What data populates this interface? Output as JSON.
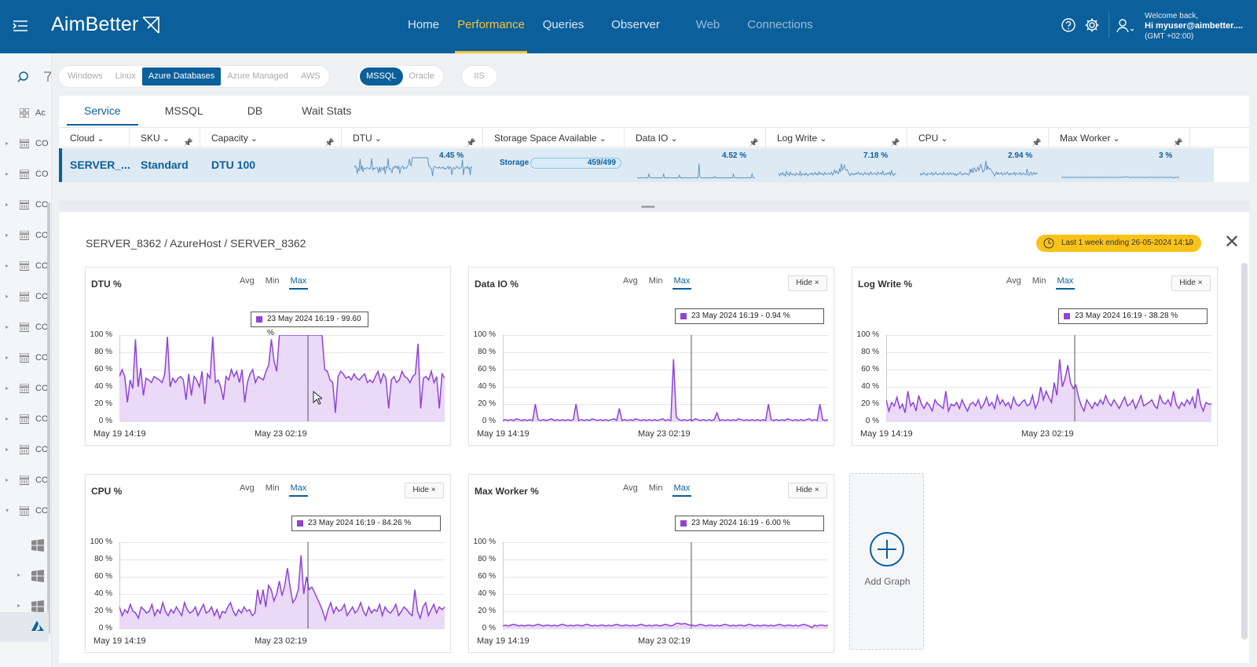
{
  "header": {
    "brand": "AimBetter",
    "nav": [
      {
        "label": "Home",
        "state": "normal"
      },
      {
        "label": "Performance",
        "state": "active"
      },
      {
        "label": "Queries",
        "state": "normal"
      },
      {
        "label": "Observer",
        "state": "normal"
      },
      {
        "label": "Web",
        "state": "dim"
      },
      {
        "label": "Connections",
        "state": "dim"
      }
    ],
    "welcome_line": "Welcome back,",
    "user_line": "Hi myuser@aimbetter....",
    "tz_line": "(GMT +02:00)"
  },
  "sidebar": {
    "top_label": "Ac",
    "rows": [
      "CO",
      "CO",
      "CO",
      "CO",
      "CO",
      "CO",
      "CO",
      "CO",
      "CO",
      "CO",
      "CO",
      "CO",
      "CO"
    ]
  },
  "filters": {
    "os": [
      "Windows",
      "Linux",
      "Azure Databases",
      "Azure Managed",
      "AWS"
    ],
    "os_selected": "Azure Databases",
    "engine": [
      "MSSQL",
      "Oracle"
    ],
    "engine_selected": "MSSQL",
    "web": "IIS"
  },
  "tabs": [
    "Service",
    "MSSQL",
    "DB",
    "Wait Stats"
  ],
  "active_tab": "Service",
  "columns": [
    "Cloud",
    "SKU",
    "Capacity",
    "DTU",
    "Storage Space Available",
    "Data IO",
    "Log Write",
    "CPU",
    "Max Worker"
  ],
  "row": {
    "cloud": "SERVER_...",
    "sku": "Standard",
    "capacity": "DTU 100",
    "dtu_pct": "4.45 %",
    "storage_label": "Storage",
    "storage_value": "459/499",
    "dataio_pct": "4.52 %",
    "logwrite_pct": "7.18 %",
    "cpu_pct": "2.94 %",
    "maxworker_pct": "3 %"
  },
  "detail": {
    "breadcrumb": "SERVER_8362 / AzureHost / SERVER_8362",
    "date_range": "Last 1 week ending  26-05-2024 14:19",
    "add_graph": "Add Graph"
  },
  "graph_ui": {
    "modes": [
      "Avg",
      "Min",
      "Max"
    ],
    "active_mode": "Max",
    "hide_label": "Hide ×",
    "y_ticks": [
      "100 %",
      "80 %",
      "60 %",
      "40 %",
      "20 %",
      "0 %"
    ],
    "x_ticks": [
      "May 19 14:19",
      "May 23 02:19"
    ],
    "line_color": "#8e44d8",
    "fill_color": "#ead9f7"
  },
  "chart_data": [
    {
      "type": "area",
      "title": "DTU %",
      "tooltip": "23 May 2024 16:19 - 99.60 %",
      "ylim": [
        0,
        100
      ],
      "values": [
        52,
        60,
        52,
        22,
        48,
        38,
        95,
        40,
        62,
        30,
        50,
        48,
        45,
        52,
        50,
        48,
        45,
        55,
        98,
        40,
        50,
        45,
        50,
        52,
        48,
        25,
        55,
        30,
        52,
        48,
        40,
        58,
        20,
        55,
        50,
        98,
        45,
        48,
        40,
        25,
        52,
        48,
        60,
        52,
        58,
        45,
        60,
        22,
        45,
        55,
        60,
        45,
        52,
        50,
        48,
        58,
        65,
        95,
        70,
        58,
        100,
        100,
        100,
        100,
        100,
        100,
        100,
        100,
        100,
        100,
        100,
        100,
        100,
        100,
        100,
        100,
        100,
        60,
        58,
        48,
        45,
        10,
        52,
        58,
        55,
        50,
        52,
        48,
        55,
        50,
        48,
        52,
        55,
        45,
        48,
        45,
        52,
        58,
        45,
        55,
        50,
        15,
        48,
        52,
        45,
        48,
        58,
        52,
        50,
        45,
        52,
        55,
        90,
        15,
        50,
        52,
        48,
        58,
        45,
        52,
        15,
        55,
        50
      ]
    },
    {
      "type": "area",
      "title": "Data IO %",
      "tooltip": "23 May 2024 16:19 - 0.94 %",
      "ylim": [
        0,
        100
      ],
      "values": [
        1,
        2,
        1,
        2,
        1,
        3,
        2,
        1,
        2,
        1,
        2,
        1,
        20,
        2,
        1,
        2,
        1,
        2,
        3,
        1,
        2,
        1,
        2,
        1,
        2,
        1,
        2,
        20,
        1,
        2,
        1,
        2,
        1,
        3,
        2,
        1,
        2,
        1,
        2,
        1,
        2,
        3,
        1,
        15,
        1,
        2,
        1,
        2,
        1,
        3,
        2,
        1,
        2,
        1,
        2,
        1,
        2,
        1,
        2,
        3,
        1,
        2,
        1,
        72,
        5,
        2,
        1,
        2,
        1,
        2,
        1,
        3,
        2,
        1,
        2,
        1,
        2,
        1,
        2,
        10,
        1,
        2,
        1,
        2,
        1,
        2,
        1,
        3,
        2,
        1,
        2,
        1,
        2,
        1,
        2,
        1,
        2,
        1,
        20,
        2,
        1,
        2,
        1,
        2,
        1,
        3,
        2,
        1,
        2,
        1,
        2,
        1,
        2,
        3,
        1,
        2,
        1,
        20,
        2,
        1,
        2
      ]
    },
    {
      "type": "area",
      "title": "Log Write %",
      "tooltip": "23 May 2024 16:19 - 38.28 %",
      "ylim": [
        0,
        100
      ],
      "values": [
        25,
        12,
        22,
        18,
        28,
        15,
        20,
        10,
        35,
        18,
        22,
        12,
        30,
        20,
        15,
        22,
        18,
        12,
        25,
        20,
        18,
        15,
        35,
        12,
        20,
        18,
        22,
        15,
        25,
        18,
        12,
        20,
        22,
        18,
        25,
        15,
        20,
        28,
        18,
        22,
        15,
        30,
        20,
        25,
        18,
        22,
        15,
        28,
        20,
        18,
        22,
        25,
        18,
        20,
        30,
        15,
        22,
        40,
        25,
        35,
        28,
        22,
        45,
        30,
        72,
        40,
        50,
        65,
        45,
        38,
        42,
        28,
        18,
        12,
        25,
        20,
        15,
        22,
        18,
        25,
        20,
        30,
        22,
        18,
        25,
        20,
        15,
        22,
        28,
        18,
        20,
        25,
        15,
        22,
        30,
        18,
        20,
        22,
        25,
        18,
        15,
        30,
        22,
        20,
        25,
        18,
        35,
        20,
        15,
        22,
        18,
        25,
        20,
        28,
        15,
        38,
        20,
        12,
        22,
        20,
        20
      ]
    },
    {
      "type": "area",
      "title": "CPU %",
      "tooltip": "23 May 2024 16:19 - 84.26 %",
      "ylim": [
        0,
        100
      ],
      "values": [
        25,
        15,
        22,
        18,
        28,
        20,
        18,
        12,
        25,
        22,
        18,
        20,
        28,
        15,
        22,
        18,
        30,
        20,
        15,
        22,
        18,
        25,
        20,
        15,
        30,
        22,
        18,
        20,
        25,
        15,
        22,
        28,
        18,
        20,
        25,
        15,
        22,
        12,
        20,
        18,
        25,
        30,
        20,
        15,
        22,
        18,
        25,
        20,
        22,
        15,
        18,
        45,
        28,
        45,
        25,
        50,
        45,
        32,
        40,
        55,
        38,
        50,
        70,
        48,
        30,
        35,
        45,
        85,
        40,
        60,
        45,
        48,
        42,
        35,
        28,
        20,
        10,
        22,
        30,
        18,
        25,
        20,
        22,
        28,
        15,
        20,
        25,
        18,
        22,
        30,
        20,
        15,
        25,
        18,
        22,
        20,
        28,
        15,
        25,
        20,
        18,
        22,
        28,
        15,
        20,
        25,
        22,
        18,
        15,
        45,
        20,
        12,
        25,
        30,
        15,
        22,
        28,
        18,
        25,
        22,
        25
      ]
    },
    {
      "type": "area",
      "title": "Max Worker %",
      "tooltip": "23 May 2024 16:19 - 6.00 %",
      "ylim": [
        0,
        100
      ],
      "values": [
        3,
        4,
        3,
        4,
        5,
        4,
        3,
        4,
        3,
        4,
        4,
        3,
        4,
        5,
        4,
        3,
        4,
        4,
        3,
        4,
        3,
        4,
        5,
        4,
        3,
        4,
        3,
        4,
        4,
        3,
        4,
        5,
        4,
        3,
        4,
        3,
        4,
        4,
        3,
        4,
        3,
        4,
        5,
        4,
        3,
        4,
        4,
        3,
        4,
        3,
        4,
        5,
        4,
        3,
        4,
        3,
        4,
        4,
        3,
        4,
        5,
        4,
        3,
        4,
        6,
        6,
        5,
        6,
        5,
        4,
        4,
        3,
        4,
        5,
        4,
        3,
        4,
        4,
        3,
        4,
        3,
        4,
        5,
        4,
        3,
        4,
        3,
        4,
        4,
        3,
        4,
        5,
        4,
        3,
        4,
        3,
        4,
        4,
        3,
        4,
        3,
        4,
        5,
        4,
        3,
        4,
        4,
        3,
        4,
        3,
        4,
        5,
        4,
        3,
        1,
        4,
        3,
        4,
        4,
        3,
        4
      ]
    }
  ]
}
